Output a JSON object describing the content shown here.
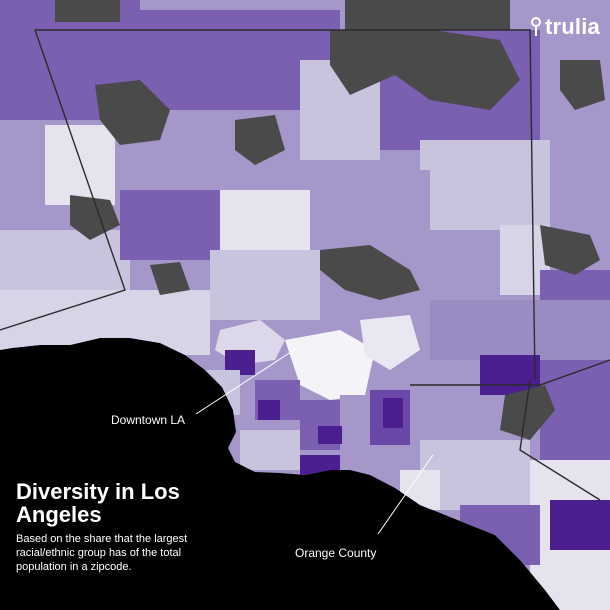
{
  "brand": {
    "name": "trulia",
    "icon": "map-pin-icon",
    "color": "#ffffff"
  },
  "map": {
    "region": "Los Angeles",
    "colors": {
      "ocean": "#000000",
      "no_data": "#4a4a4a",
      "most_diverse": "#f1f0f6",
      "high_diversity": "#c9c4dd",
      "mid_diversity": "#a597c9",
      "low_diversity": "#7b5fb1",
      "least_diverse": "#4b1f8f",
      "border": "#2b2b2b",
      "callout_line": "#ffffff"
    },
    "callouts": {
      "downtown": "Downtown LA",
      "orange_county": "Orange County"
    }
  },
  "title": {
    "heading": "Diversity in Los Angeles",
    "subtitle": "Based on the share that the largest racial/ethnic group has of the total population in a zipcode."
  }
}
